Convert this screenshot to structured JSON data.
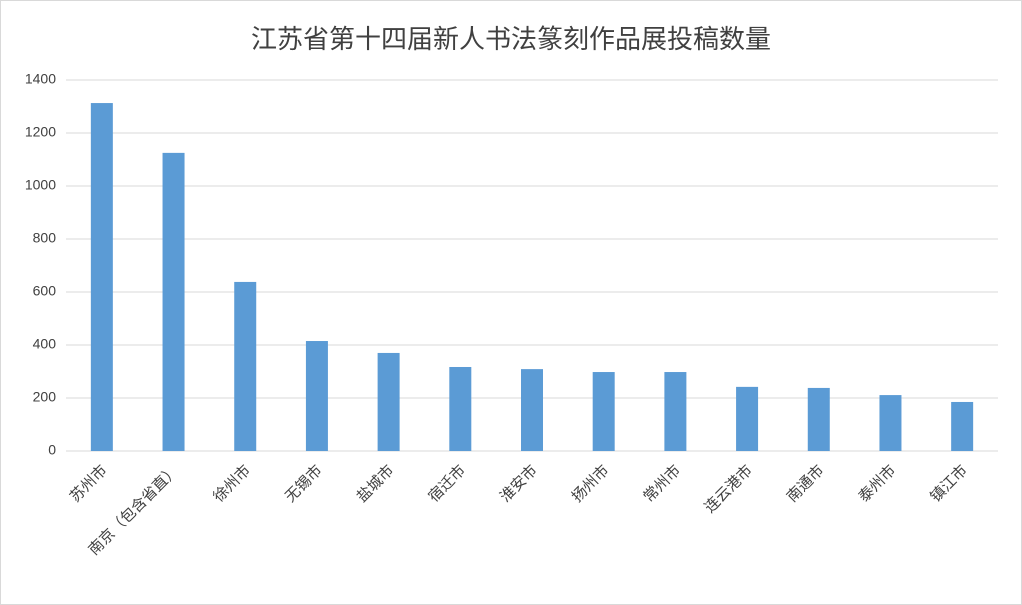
{
  "chart_data": {
    "type": "bar",
    "title": "江苏省第十四届新人书法篆刻作品展投稿数量",
    "categories": [
      "苏州市",
      "南京（包含省直）",
      "徐州市",
      "无锡市",
      "盐城市",
      "宿迁市",
      "淮安市",
      "扬州市",
      "常州市",
      "连云港市",
      "南通市",
      "泰州市",
      "镇江市"
    ],
    "values": [
      1313,
      1125,
      638,
      415,
      370,
      317,
      309,
      298,
      298,
      242,
      238,
      211,
      185
    ],
    "color": "#5b9bd5",
    "ylim": [
      0,
      1400
    ],
    "yticks": [
      0,
      200,
      400,
      600,
      800,
      1000,
      1200,
      1400
    ],
    "grid": true
  }
}
